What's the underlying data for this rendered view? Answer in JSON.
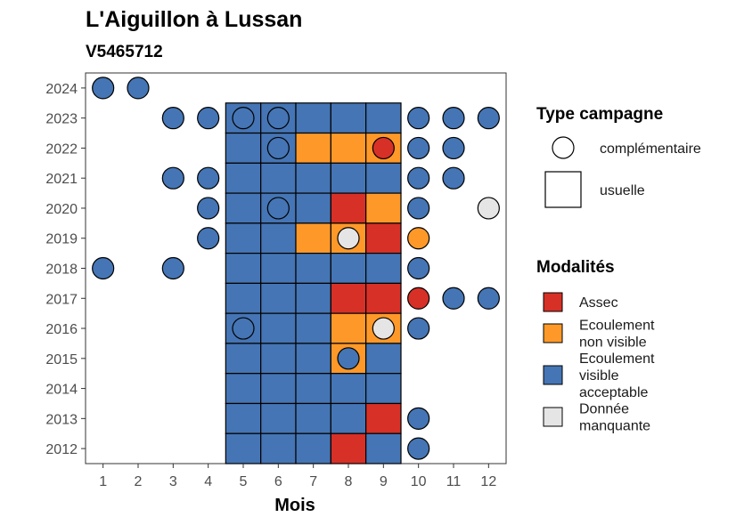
{
  "chart_data": {
    "type": "heatmap",
    "title": "L'Aiguillon à Lussan",
    "subtitle": "V5465712",
    "xlabel": "Mois",
    "ylabel": "",
    "x_ticks": [
      1,
      2,
      3,
      4,
      5,
      6,
      7,
      8,
      9,
      10,
      11,
      12
    ],
    "y_ticks": [
      2012,
      2013,
      2014,
      2015,
      2016,
      2017,
      2018,
      2019,
      2020,
      2021,
      2022,
      2023,
      2024
    ],
    "xlim": [
      0.5,
      12.5
    ],
    "ylim": [
      2011.5,
      2024.5
    ],
    "grid": false,
    "colors": {
      "Assec": "#d73027",
      "Ecoulement non visible": "#fe9929",
      "Ecoulement visible acceptable": "#4575b4",
      "Donnée manquante": "#e5e5e5"
    },
    "legend": {
      "campaign_title": "Type campagne",
      "campaign_items": [
        {
          "label": "complémentaire",
          "shape": "circle"
        },
        {
          "label": "usuelle",
          "shape": "square"
        }
      ],
      "modalites_title": "Modalités",
      "modalites_items": [
        {
          "lines": [
            "Assec"
          ],
          "key": "Assec"
        },
        {
          "lines": [
            "Ecoulement",
            "non visible"
          ],
          "key": "Ecoulement non visible"
        },
        {
          "lines": [
            "Ecoulement",
            "visible",
            "acceptable"
          ],
          "key": "Ecoulement visible acceptable"
        },
        {
          "lines": [
            "Donnée",
            "manquante"
          ],
          "key": "Donnée manquante"
        }
      ],
      "placement": "right"
    },
    "usuelle": [
      {
        "year": 2023,
        "values": [
          "Ecoulement visible acceptable",
          "Ecoulement visible acceptable",
          "Ecoulement visible acceptable",
          "Ecoulement visible acceptable",
          "Ecoulement visible acceptable"
        ]
      },
      {
        "year": 2022,
        "values": [
          "Ecoulement visible acceptable",
          "Ecoulement visible acceptable",
          "Ecoulement non visible",
          "Ecoulement non visible",
          "Ecoulement non visible"
        ]
      },
      {
        "year": 2021,
        "values": [
          "Ecoulement visible acceptable",
          "Ecoulement visible acceptable",
          "Ecoulement visible acceptable",
          "Ecoulement visible acceptable",
          "Ecoulement visible acceptable"
        ]
      },
      {
        "year": 2020,
        "values": [
          "Ecoulement visible acceptable",
          "Ecoulement visible acceptable",
          "Ecoulement visible acceptable",
          "Assec",
          "Ecoulement non visible"
        ]
      },
      {
        "year": 2019,
        "values": [
          "Ecoulement visible acceptable",
          "Ecoulement visible acceptable",
          "Ecoulement non visible",
          "Ecoulement non visible",
          "Assec"
        ]
      },
      {
        "year": 2018,
        "values": [
          "Ecoulement visible acceptable",
          "Ecoulement visible acceptable",
          "Ecoulement visible acceptable",
          "Ecoulement visible acceptable",
          "Ecoulement visible acceptable"
        ]
      },
      {
        "year": 2017,
        "values": [
          "Ecoulement visible acceptable",
          "Ecoulement visible acceptable",
          "Ecoulement visible acceptable",
          "Assec",
          "Assec"
        ]
      },
      {
        "year": 2016,
        "values": [
          "Ecoulement visible acceptable",
          "Ecoulement visible acceptable",
          "Ecoulement visible acceptable",
          "Ecoulement non visible",
          "Ecoulement non visible"
        ]
      },
      {
        "year": 2015,
        "values": [
          "Ecoulement visible acceptable",
          "Ecoulement visible acceptable",
          "Ecoulement visible acceptable",
          "Ecoulement non visible",
          "Ecoulement visible acceptable"
        ]
      },
      {
        "year": 2014,
        "values": [
          "Ecoulement visible acceptable",
          "Ecoulement visible acceptable",
          "Ecoulement visible acceptable",
          "Ecoulement visible acceptable",
          "Ecoulement visible acceptable"
        ]
      },
      {
        "year": 2013,
        "values": [
          "Ecoulement visible acceptable",
          "Ecoulement visible acceptable",
          "Ecoulement visible acceptable",
          "Ecoulement visible acceptable",
          "Assec"
        ]
      },
      {
        "year": 2012,
        "values": [
          "Ecoulement visible acceptable",
          "Ecoulement visible acceptable",
          "Ecoulement visible acceptable",
          "Assec",
          "Ecoulement visible acceptable"
        ]
      }
    ],
    "usuelle_months": [
      5,
      6,
      7,
      8,
      9
    ],
    "complementaire": [
      {
        "year": 2024,
        "month": 1,
        "value": "Ecoulement visible acceptable"
      },
      {
        "year": 2024,
        "month": 2,
        "value": "Ecoulement visible acceptable"
      },
      {
        "year": 2023,
        "month": 3,
        "value": "Ecoulement visible acceptable"
      },
      {
        "year": 2023,
        "month": 4,
        "value": "Ecoulement visible acceptable"
      },
      {
        "year": 2023,
        "month": 5,
        "value": "Ecoulement visible acceptable"
      },
      {
        "year": 2023,
        "month": 6,
        "value": "Ecoulement visible acceptable"
      },
      {
        "year": 2023,
        "month": 10,
        "value": "Ecoulement visible acceptable"
      },
      {
        "year": 2023,
        "month": 11,
        "value": "Ecoulement visible acceptable"
      },
      {
        "year": 2023,
        "month": 12,
        "value": "Ecoulement visible acceptable"
      },
      {
        "year": 2022,
        "month": 6,
        "value": "Ecoulement visible acceptable"
      },
      {
        "year": 2022,
        "month": 9,
        "value": "Assec"
      },
      {
        "year": 2022,
        "month": 10,
        "value": "Ecoulement visible acceptable"
      },
      {
        "year": 2022,
        "month": 11,
        "value": "Ecoulement visible acceptable"
      },
      {
        "year": 2021,
        "month": 3,
        "value": "Ecoulement visible acceptable"
      },
      {
        "year": 2021,
        "month": 4,
        "value": "Ecoulement visible acceptable"
      },
      {
        "year": 2021,
        "month": 10,
        "value": "Ecoulement visible acceptable"
      },
      {
        "year": 2021,
        "month": 11,
        "value": "Ecoulement visible acceptable"
      },
      {
        "year": 2020,
        "month": 4,
        "value": "Ecoulement visible acceptable"
      },
      {
        "year": 2020,
        "month": 6,
        "value": "Ecoulement visible acceptable"
      },
      {
        "year": 2020,
        "month": 10,
        "value": "Ecoulement visible acceptable"
      },
      {
        "year": 2020,
        "month": 12,
        "value": "Donnée manquante"
      },
      {
        "year": 2019,
        "month": 4,
        "value": "Ecoulement visible acceptable"
      },
      {
        "year": 2019,
        "month": 8,
        "value": "Donnée manquante"
      },
      {
        "year": 2019,
        "month": 10,
        "value": "Ecoulement non visible"
      },
      {
        "year": 2018,
        "month": 1,
        "value": "Ecoulement visible acceptable"
      },
      {
        "year": 2018,
        "month": 3,
        "value": "Ecoulement visible acceptable"
      },
      {
        "year": 2018,
        "month": 10,
        "value": "Ecoulement visible acceptable"
      },
      {
        "year": 2017,
        "month": 10,
        "value": "Assec"
      },
      {
        "year": 2017,
        "month": 11,
        "value": "Ecoulement visible acceptable"
      },
      {
        "year": 2017,
        "month": 12,
        "value": "Ecoulement visible acceptable"
      },
      {
        "year": 2016,
        "month": 5,
        "value": "Ecoulement visible acceptable"
      },
      {
        "year": 2016,
        "month": 9,
        "value": "Donnée manquante"
      },
      {
        "year": 2016,
        "month": 10,
        "value": "Ecoulement visible acceptable"
      },
      {
        "year": 2015,
        "month": 8,
        "value": "Ecoulement visible acceptable"
      },
      {
        "year": 2013,
        "month": 10,
        "value": "Ecoulement visible acceptable"
      },
      {
        "year": 2012,
        "month": 10,
        "value": "Ecoulement visible acceptable"
      }
    ]
  }
}
